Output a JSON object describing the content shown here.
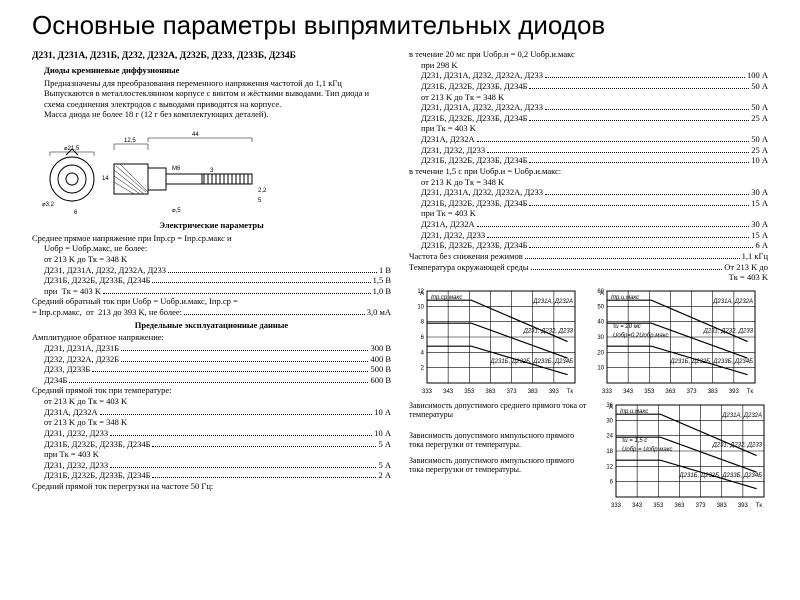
{
  "title": "Основные параметры выпрямительных диодов",
  "heading": "Д231, Д231А, Д231Б, Д232, Д232А, Д232Б, Д233, Д233Б, Д234Б",
  "intro": {
    "line1": "Диоды кремниевые диффузионные",
    "line2": "Предназначены для преобразования переменного напряжения частотой до 1,1 кГц",
    "line3": "Выпускаются в металлостеклянном корпусе с винтом и жёсткими выводами. Тип диода и схема соединения электродов с выводами приводятся на корпусе.",
    "line4": "Масса диода не более 18 г (12 г без комплектующих деталей)."
  },
  "dims": {
    "d1": "⌀21,5",
    "w1": "12,5",
    "w2": "44",
    "h": "14",
    "thread": "М6",
    "d2": "⌀3,2",
    "d3": "⌀,5",
    "t1": "3",
    "t2": "2,2",
    "t3": "5",
    "ang": "6"
  },
  "elec_title": "Электрические параметры",
  "elec": {
    "pre1": "Среднее прямое напряжение при  Iпр.ср = Iпр.ср.макс  и",
    "pre2": "Uобр = Uобр.макс, не более:",
    "pre3": "от 213 K до  Tк = 348 K",
    "r1": {
      "l": "Д231, Д231А, Д232, Д232А, Д233",
      "v": "1 В"
    },
    "r2": {
      "l": "Д231Б, Д232Б, Д233Б, Д234Б",
      "v": "1,5 В"
    },
    "r3": {
      "l": "при  Tк = 403 K",
      "v": "1,0 В"
    },
    "pre4": "Средний обратный ток при  Uобр = Uобр.и.макс,  Iпр.ср =",
    "r4": {
      "l": "= Iпр.ср.макс,  от  213 до 393 K, не более:",
      "v": "3,0 мА"
    }
  },
  "limit_title": "Предельные эксплуатационные данные",
  "limit": {
    "hdr1": "Амплитудное обратное напряжение:",
    "r1": {
      "l": "Д231, Д231А, Д231Б",
      "v": "300 В"
    },
    "r2": {
      "l": "Д232, Д232А, Д232Б",
      "v": "400 В"
    },
    "r3": {
      "l": "Д233, Д233Б",
      "v": "500 В"
    },
    "r4": {
      "l": "Д234Б",
      "v": "600 В"
    },
    "hdr2": "Средний прямой ток при температуре:",
    "c1": "от 213 K до  Tк = 403 K",
    "r5": {
      "l": "Д231А, Д232А",
      "v": "10 А"
    },
    "c2": "от 213 K до  Tк = 348 K",
    "r6": {
      "l": "Д231, Д232, Д233",
      "v": "10 А"
    },
    "r7": {
      "l": "Д231Б, Д232Б, Д233Б, Д234Б",
      "v": "5 А"
    },
    "c3": "при  Tк = 403 K",
    "r8": {
      "l": "Д231, Д232, Д233",
      "v": "5 А"
    },
    "r9": {
      "l": "Д231Б, Д232Б, Д233Б, Д234Б",
      "v": "2 А"
    },
    "hdr3": "Средний прямой ток перегрузки на частоте 50 Гц:"
  },
  "right": {
    "pre1": "в течение 20 мс при  Uобр.и = 0,2  Uобр.и.макс",
    "pre2": "при 298 K",
    "r1": {
      "l": "Д231, Д231А, Д232, Д232А, Д233",
      "v": "100 А"
    },
    "r2": {
      "l": "Д231Б, Д232Б, Д233Б, Д234Б",
      "v": "50 А"
    },
    "c1": "от 213 K до  Tк = 348 K",
    "r3": {
      "l": "Д231, Д231А, Д232, Д232А, Д233",
      "v": "50 А"
    },
    "r4": {
      "l": "Д231Б, Д232Б, Д233Б, Д234Б",
      "v": "25 А"
    },
    "c2": "при  Tк = 403 K",
    "r5": {
      "l": "Д231А, Д232А",
      "v": "50 А"
    },
    "r6": {
      "l": "Д231, Д232, Д233",
      "v": "25 А"
    },
    "r7": {
      "l": "Д231Б, Д232Б, Д233Б, Д234Б",
      "v": "10 А"
    },
    "pre3": "в течение 1,5 с при  Uобр.и = Uобр.и.макс:",
    "c3": "от 213 K до  Tк = 348 K",
    "r8": {
      "l": "Д231, Д231А, Д232, Д232А, Д233",
      "v": "30 А"
    },
    "r9": {
      "l": "Д231Б, Д232Б, Д233Б, Д234Б",
      "v": "15 А"
    },
    "c4": "при  Tк = 403 K",
    "r10": {
      "l": "Д231А, Д232А",
      "v": "30 А"
    },
    "r11": {
      "l": "Д231, Д232, Д233",
      "v": "15 А"
    },
    "r12": {
      "l": "Д231Б, Д232Б, Д233Б, Д234Б",
      "v": "6 А"
    },
    "r13": {
      "l": "Частота без снижения режимов",
      "v": "1,1 кГц"
    },
    "r14": {
      "l": "Температура окружающей среды",
      "v": "От 213 K до"
    },
    "r15": "Tк = 403 K"
  },
  "captions": {
    "c1": "Зависимость допустимого среднего прямого тока от температуры",
    "c2": "Зависимость допустимого импульсного прямого тока перегрузки от температуры.",
    "c3": "Зависимость допустимого импульсного прямого тока перегрузки от температуры."
  },
  "chart": {
    "xticks": [
      "333",
      "343",
      "353",
      "363",
      "373",
      "383",
      "393"
    ],
    "xlabel": "Tк",
    "y1": {
      "unit": "А",
      "label": "Iпр.ср.макс",
      "ticks": [
        "2",
        "4",
        "6",
        "8",
        "10",
        "12"
      ],
      "l1": "Д231А, Д232А",
      "l2": "Д231, Д232, Д233",
      "l3": "Д231Б, Д232Б, Д233Б, Д234Б"
    },
    "y2": {
      "unit": "А",
      "label": "Iпр.и.макс",
      "ticks": [
        "10",
        "20",
        "30",
        "40",
        "50",
        "60"
      ],
      "note": "τи = 20 мс",
      "note2": "Uобр=0,2Uобр.макс",
      "l1": "Д231А, Д232А",
      "l2": "Д231, Д232, Д233",
      "l3": "Д231Б, Д232Б, Д233Б, Д234Б"
    },
    "y3": {
      "unit": "А",
      "label": "Iпр.и.макс",
      "ticks": [
        "6",
        "12",
        "18",
        "24",
        "30",
        "36"
      ],
      "note": "τи = 1,5 с",
      "note2": "Uобр = Uобр.макс",
      "l1": "Д231А, Д232А",
      "l2": "Д231, Д232, Д233",
      "l3": "Д231Б, Д232Б, Д233Б, Д234Б"
    }
  }
}
